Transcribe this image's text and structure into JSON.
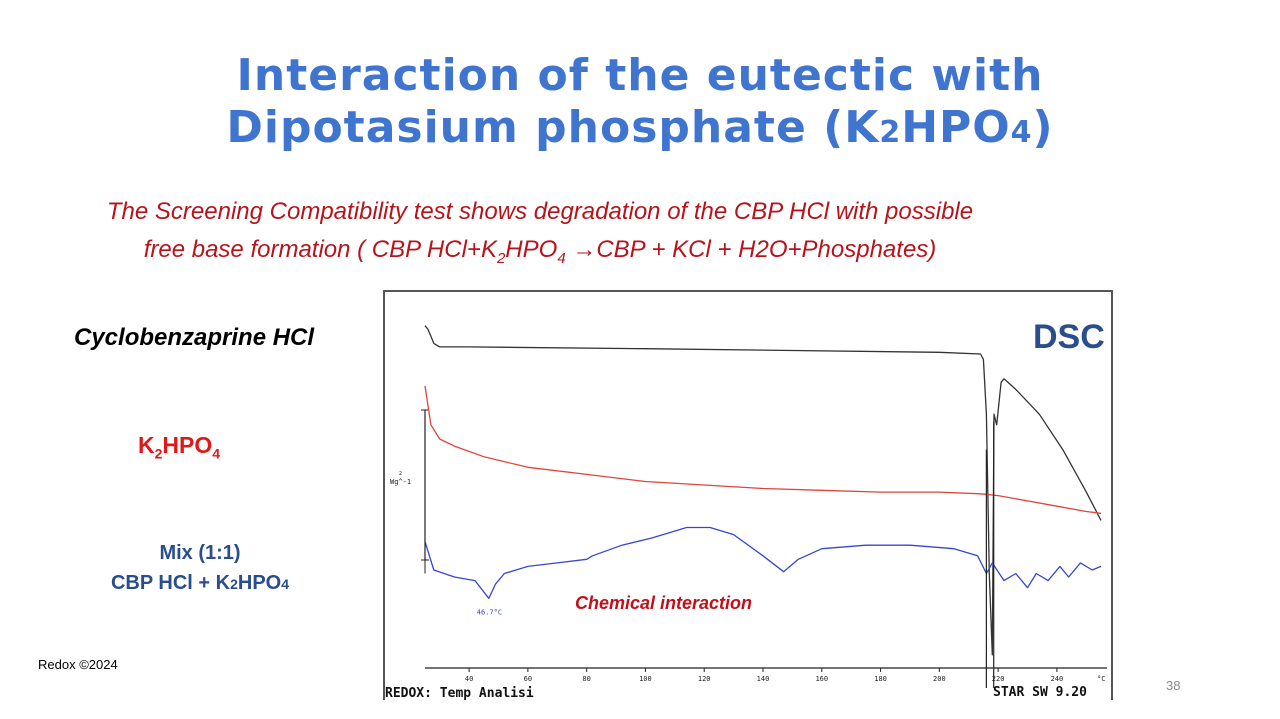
{
  "slide": {
    "title_line1": "Interaction of the eutectic with",
    "title_line2_pre": "Dipotasium phosphate (K",
    "title_line2_sub1": "2",
    "title_line2_mid": "HPO",
    "title_line2_sub2": "4",
    "title_line2_post": ")",
    "subtitle_line1": "The Screening Compatibility test shows degradation of the CBP HCl with possible",
    "subtitle_line2_pre": "free base formation ( CBP HCl+K",
    "subtitle_line2_sub1": "2",
    "subtitle_line2_mid": "HPO",
    "subtitle_line2_sub2": "4",
    "subtitle_line2_arrow": "→",
    "subtitle_line2_post": "CBP + KCl + H2O+Phosphates)",
    "footer": "Redox ©2024",
    "page_number": "38"
  },
  "labels": {
    "cbp": "Cyclobenzaprine HCl",
    "k2hpo4_pre": "K",
    "k2hpo4_sub1": "2",
    "k2hpo4_mid": "HPO",
    "k2hpo4_sub2": "4",
    "mix_line1": "Mix  (1:1)",
    "mix_line2_pre": "CBP HCl + K",
    "mix_line2_sub1": "2",
    "mix_line2_mid": "HPO",
    "mix_line2_sub2": "4"
  },
  "colors": {
    "title": "#3f74cf",
    "subtitle": "#b8131b",
    "cbp_curve": "#333333",
    "k2hpo4_curve": "#e0443a",
    "mix_curve": "#3447d0",
    "dsc_label": "#2a4e8c",
    "annotation": "#c0101a"
  },
  "chart_data": {
    "type": "line",
    "title": "DSC",
    "xlabel": "°C",
    "xlim": [
      25,
      255
    ],
    "x_ticks": [
      40,
      60,
      80,
      100,
      120,
      140,
      160,
      180,
      200,
      220,
      240
    ],
    "x_tick_labels": [
      "40",
      "60",
      "80",
      "100",
      "120",
      "140",
      "160",
      "180",
      "200",
      "220",
      "240"
    ],
    "x_unit_label": "°C",
    "y_axis_label": "Wg^-1",
    "y_axis_superscript": "2",
    "annotation": "Chemical interaction",
    "peak_label": "46.7°C",
    "footer_left": "REDOX: Temp Analisi",
    "footer_right": "STAR SW 9.20",
    "series": [
      {
        "name": "Cyclobenzaprine HCl",
        "color": "#333333",
        "points": [
          [
            25,
            0.05
          ],
          [
            26,
            0.06
          ],
          [
            27,
            0.08
          ],
          [
            28,
            0.1
          ],
          [
            30,
            0.11
          ],
          [
            40,
            0.11
          ],
          [
            100,
            0.115
          ],
          [
            150,
            0.12
          ],
          [
            200,
            0.125
          ],
          [
            214,
            0.13
          ],
          [
            215,
            0.145
          ],
          [
            216,
            0.3
          ],
          [
            217,
            0.75
          ],
          [
            218,
            0.98
          ],
          [
            218.6,
            0.3
          ],
          [
            219.5,
            0.33
          ],
          [
            221,
            0.21
          ],
          [
            222,
            0.2
          ],
          [
            226,
            0.23
          ],
          [
            234,
            0.3
          ],
          [
            242,
            0.4
          ],
          [
            250,
            0.52
          ],
          [
            255,
            0.6
          ]
        ]
      },
      {
        "name": "K2HPO4",
        "color": "#e0443a",
        "points": [
          [
            25,
            0.22
          ],
          [
            27,
            0.33
          ],
          [
            30,
            0.37
          ],
          [
            35,
            0.39
          ],
          [
            45,
            0.42
          ],
          [
            60,
            0.45
          ],
          [
            80,
            0.47
          ],
          [
            100,
            0.49
          ],
          [
            120,
            0.5
          ],
          [
            140,
            0.51
          ],
          [
            160,
            0.515
          ],
          [
            180,
            0.52
          ],
          [
            200,
            0.52
          ],
          [
            214,
            0.525
          ],
          [
            220,
            0.53
          ],
          [
            230,
            0.545
          ],
          [
            240,
            0.56
          ],
          [
            250,
            0.575
          ],
          [
            255,
            0.58
          ]
        ]
      },
      {
        "name": "Mix (1:1) CBP HCl + K2HPO4",
        "color": "#3447d0",
        "points": [
          [
            25,
            0.66
          ],
          [
            28,
            0.74
          ],
          [
            35,
            0.76
          ],
          [
            42,
            0.77
          ],
          [
            46.7,
            0.82
          ],
          [
            49,
            0.78
          ],
          [
            52,
            0.75
          ],
          [
            60,
            0.73
          ],
          [
            70,
            0.72
          ],
          [
            80,
            0.71
          ],
          [
            82,
            0.7
          ],
          [
            92,
            0.67
          ],
          [
            102,
            0.65
          ],
          [
            114,
            0.62
          ],
          [
            122,
            0.62
          ],
          [
            130,
            0.64
          ],
          [
            140,
            0.7
          ],
          [
            147,
            0.745
          ],
          [
            152,
            0.71
          ],
          [
            160,
            0.68
          ],
          [
            175,
            0.67
          ],
          [
            190,
            0.67
          ],
          [
            205,
            0.68
          ],
          [
            213,
            0.7
          ],
          [
            216,
            0.75
          ],
          [
            218,
            0.72
          ],
          [
            222,
            0.77
          ],
          [
            226,
            0.75
          ],
          [
            230,
            0.79
          ],
          [
            233,
            0.75
          ],
          [
            237,
            0.77
          ],
          [
            241,
            0.73
          ],
          [
            244,
            0.76
          ],
          [
            248,
            0.72
          ],
          [
            252,
            0.74
          ],
          [
            255,
            0.73
          ]
        ]
      }
    ]
  }
}
